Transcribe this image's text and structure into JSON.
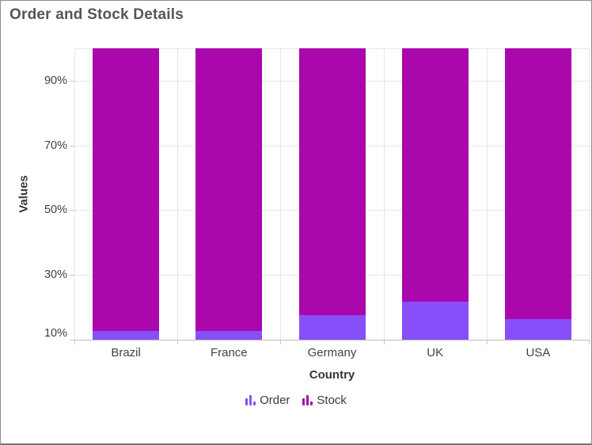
{
  "chart_data": {
    "type": "bar",
    "variant": "stacked-column-100-percent",
    "title": "Order and Stock Details",
    "xlabel": "Country",
    "ylabel": "Values",
    "categories": [
      "Brazil",
      "France",
      "Germany",
      "UK",
      "USA"
    ],
    "series": [
      {
        "name": "Order",
        "color": "#864ff9",
        "values_percent": [
          12.8,
          12.8,
          17.5,
          21.8,
          16.4
        ]
      },
      {
        "name": "Stock",
        "color": "#aa08ad",
        "values_percent": [
          87.2,
          87.2,
          82.5,
          78.2,
          83.6
        ]
      }
    ],
    "y_axis": {
      "min": 10,
      "max": 100,
      "interval": 20,
      "tick_labels": [
        "10%",
        "30%",
        "50%",
        "70%",
        "90%"
      ],
      "label_format": "{value}%"
    },
    "x_axis_title": "Country",
    "legend_position": "bottom",
    "grid": true
  },
  "colors": {
    "order_series": "#864ff9",
    "stock_series": "#aa08ad",
    "gridline": "#e7e7e7",
    "axis_line": "#bdbdbd",
    "title_text": "#55555a",
    "axis_label_text": "#424242",
    "page_border": "#8f8f8f"
  }
}
